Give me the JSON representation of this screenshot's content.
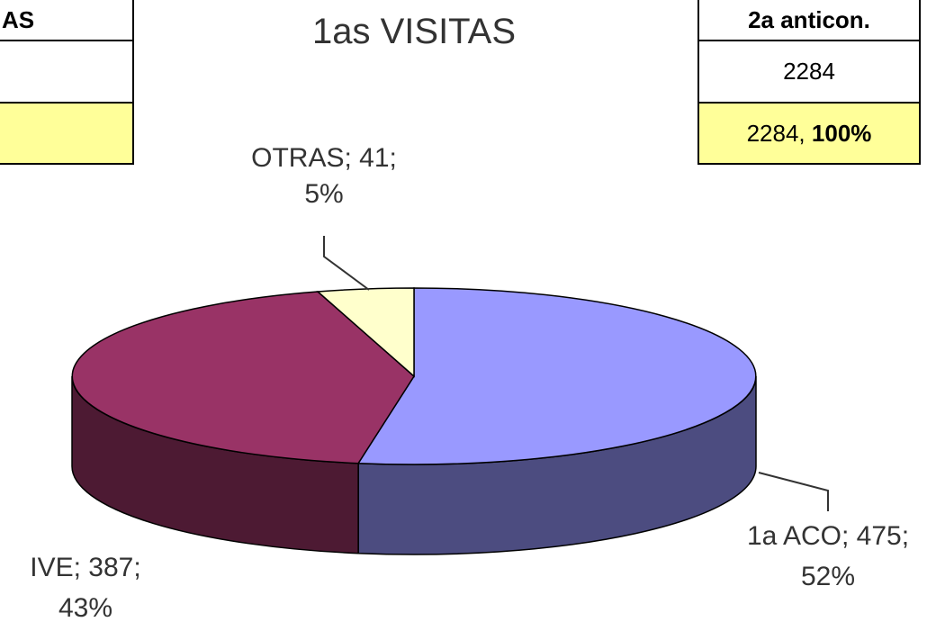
{
  "chart_data": {
    "type": "pie",
    "title": "1as VISITAS",
    "categories": [
      "1a ACO",
      "IVE",
      "OTRAS"
    ],
    "values": [
      475,
      387,
      41
    ],
    "labels": [
      [
        "1a ACO; 475;",
        "52%"
      ],
      [
        "IVE; 387;",
        "43%"
      ],
      [
        "OTRAS; 41;",
        "5%"
      ]
    ],
    "colors": [
      "#9999ff",
      "#993366",
      "#ffffcc"
    ],
    "side_colors": [
      "#4c4c80",
      "#4d1a33",
      "#999977"
    ]
  },
  "left_table": {
    "header": "AS"
  },
  "right_table": {
    "header": "2a anticon.",
    "row": "2284",
    "total_row": {
      "text": "2284,",
      "bold": "100%"
    }
  }
}
